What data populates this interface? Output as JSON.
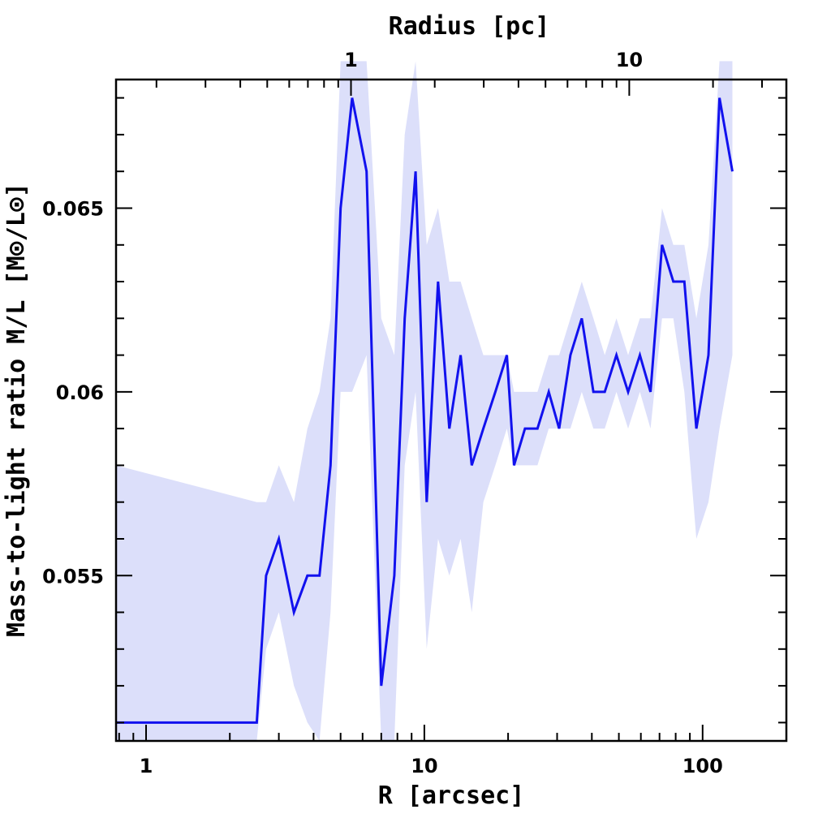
{
  "chart_data": {
    "type": "line",
    "xlabel": "R [arcsec]",
    "x2label": "Radius [pc]",
    "ylabel": "Mass-to-light ratio M/L [M⊙/L⊙]",
    "xscale": "log",
    "xlim": [
      0.78,
      200
    ],
    "ylim": [
      0.0505,
      0.0685
    ],
    "x_ticks": [
      {
        "value": 1,
        "label": "1"
      },
      {
        "value": 10,
        "label": "10"
      },
      {
        "value": 100,
        "label": "100"
      }
    ],
    "x2_ticks": [
      {
        "value_arcsec": 5.45,
        "label": "1"
      },
      {
        "value_arcsec": 54.5,
        "label": "10"
      }
    ],
    "y_ticks": [
      {
        "value": 0.055,
        "label": "0.055"
      },
      {
        "value": 0.06,
        "label": "0.06"
      },
      {
        "value": 0.065,
        "label": "0.065"
      }
    ],
    "series": [
      {
        "x": [
          0.78,
          2.5,
          2.7,
          3.0,
          3.4,
          3.8,
          4.2,
          4.6,
          5.0,
          5.5,
          6.2,
          7.0,
          7.8,
          8.5,
          9.3,
          10.2,
          11.2,
          12.3,
          13.5,
          14.8,
          16.3,
          18.0,
          19.8,
          21.0,
          23.0,
          25.5,
          28.0,
          30.5,
          33.5,
          36.8,
          40.5,
          44.5,
          49.0,
          54.0,
          59.5,
          65.0,
          71.5,
          78.5,
          86.0,
          95.0,
          105.0,
          115.0,
          128.0
        ],
        "y": [
          0.051,
          0.051,
          0.055,
          0.056,
          0.054,
          0.055,
          0.055,
          0.058,
          0.065,
          0.068,
          0.066,
          0.052,
          0.055,
          0.062,
          0.066,
          0.057,
          0.063,
          0.059,
          0.061,
          0.058,
          0.059,
          0.06,
          0.061,
          0.058,
          0.059,
          0.059,
          0.06,
          0.059,
          0.061,
          0.062,
          0.06,
          0.06,
          0.061,
          0.06,
          0.061,
          0.06,
          0.064,
          0.063,
          0.063,
          0.059,
          0.061,
          0.068,
          0.066
        ],
        "upper": [
          0.058,
          0.057,
          0.057,
          0.058,
          0.057,
          0.059,
          0.06,
          0.062,
          0.069,
          0.069,
          0.069,
          0.062,
          0.061,
          0.067,
          0.069,
          0.064,
          0.065,
          0.063,
          0.063,
          0.062,
          0.061,
          0.061,
          0.061,
          0.06,
          0.06,
          0.06,
          0.061,
          0.061,
          0.062,
          0.063,
          0.062,
          0.061,
          0.062,
          0.061,
          0.062,
          0.062,
          0.065,
          0.064,
          0.064,
          0.062,
          0.064,
          0.069,
          0.069
        ],
        "lower": [
          0.0505,
          0.0505,
          0.053,
          0.054,
          0.052,
          0.051,
          0.0505,
          0.054,
          0.06,
          0.06,
          0.061,
          0.0505,
          0.0505,
          0.058,
          0.06,
          0.053,
          0.056,
          0.055,
          0.056,
          0.054,
          0.057,
          0.058,
          0.059,
          0.058,
          0.058,
          0.058,
          0.059,
          0.059,
          0.059,
          0.06,
          0.059,
          0.059,
          0.06,
          0.059,
          0.06,
          0.059,
          0.062,
          0.062,
          0.06,
          0.056,
          0.057,
          0.059,
          0.061
        ]
      }
    ],
    "colors": {
      "line": "#1111ee",
      "band": "#dcdffa"
    },
    "grid": false
  }
}
